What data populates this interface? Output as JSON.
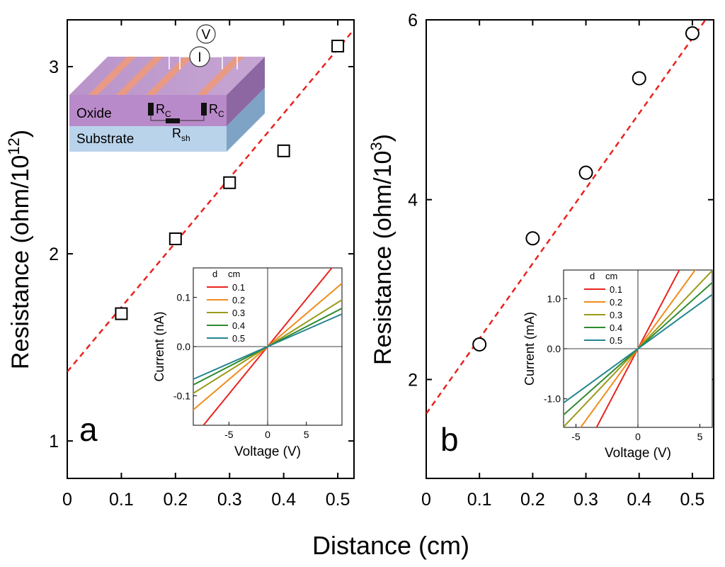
{
  "figure": {
    "xlabel": "Distance (cm)"
  },
  "chart_data": [
    {
      "panel": "a",
      "type": "scatter",
      "panel_label": "a",
      "ylabel_main": "Resistance (ohm/10",
      "ylabel_exp": "12",
      "ylabel_close": ")",
      "xlim": [
        0,
        0.53
      ],
      "ylim": [
        0.8,
        3.25
      ],
      "x_ticks": [
        0,
        0.1,
        0.2,
        0.3,
        0.4,
        0.5
      ],
      "x_tick_labels": [
        "0",
        "0.1",
        "0.2",
        "0.3",
        "0.4",
        "0.5"
      ],
      "y_ticks": [
        1,
        2,
        3
      ],
      "y_tick_labels": [
        "1",
        "2",
        "3"
      ],
      "marker": "square",
      "series": [
        {
          "name": "data",
          "x": [
            0.1,
            0.2,
            0.3,
            0.4,
            0.5
          ],
          "y": [
            1.68,
            2.08,
            2.38,
            2.55,
            3.11
          ]
        }
      ],
      "fit": {
        "name": "linear fit",
        "color": "#e8231f",
        "intercept": 1.37,
        "slope": 3.45
      },
      "inset": {
        "xlabel": "Voltage (V)",
        "ylabel": "Current (nA)",
        "xlim": [
          -9.6,
          9.6
        ],
        "ylim": [
          -0.16,
          0.16
        ],
        "x_ticks": [
          -5,
          0,
          5
        ],
        "x_tick_labels": [
          "-5",
          "0",
          "5"
        ],
        "y_ticks": [
          -0.1,
          0,
          0.1
        ],
        "y_tick_labels": [
          "-0.1",
          "0.0",
          "0.1"
        ],
        "legend_header_d": "d",
        "legend_header_unit": "cm",
        "series": [
          {
            "name": "0.1",
            "color": "#e8231f",
            "slope": 0.0193
          },
          {
            "name": "0.2",
            "color": "#f08c1c",
            "slope": 0.0134
          },
          {
            "name": "0.3",
            "color": "#9a9a1a",
            "slope": 0.0099
          },
          {
            "name": "0.4",
            "color": "#2e8b2e",
            "slope": 0.0081
          },
          {
            "name": "0.5",
            "color": "#24858f",
            "slope": 0.0069
          }
        ]
      },
      "schematic": {
        "oxide_label": "Oxide",
        "substrate_label": "Substrate",
        "rc_label": "R",
        "rc_sub": "C",
        "rsh_label": "R",
        "rsh_sub": "sh",
        "voltmeter": "V",
        "ammeter": "I"
      }
    },
    {
      "panel": "b",
      "type": "scatter",
      "panel_label": "b",
      "ylabel_main": "Resistance (ohm/10",
      "ylabel_exp": "3",
      "ylabel_close": ")",
      "xlim": [
        0,
        0.54
      ],
      "ylim": [
        0.9,
        6.0
      ],
      "x_ticks": [
        0,
        0.1,
        0.2,
        0.3,
        0.4,
        0.5
      ],
      "x_tick_labels": [
        "0",
        "0.1",
        "0.2",
        "0.3",
        "0.4",
        "0.5"
      ],
      "y_ticks": [
        2,
        4,
        6
      ],
      "y_tick_labels": [
        "2",
        "4",
        "6"
      ],
      "marker": "circle",
      "series": [
        {
          "name": "data",
          "x": [
            0.1,
            0.2,
            0.3,
            0.4,
            0.5
          ],
          "y": [
            2.39,
            3.57,
            4.3,
            5.35,
            5.85
          ]
        }
      ],
      "fit": {
        "name": "linear fit",
        "color": "#e8231f",
        "intercept": 1.62,
        "slope": 8.35
      },
      "inset": {
        "xlabel": "Voltage (V)",
        "ylabel": "Current (mA)",
        "xlim": [
          -6.0,
          6.0
        ],
        "ylim": [
          -1.57,
          1.57
        ],
        "x_ticks": [
          -5,
          0,
          5
        ],
        "x_tick_labels": [
          "-5",
          "0",
          "5"
        ],
        "y_ticks": [
          -1,
          0,
          1
        ],
        "y_tick_labels": [
          "-1.0",
          "0.0",
          "1.0"
        ],
        "legend_header_d": "d",
        "legend_header_unit": "cm",
        "series": [
          {
            "name": "0.1",
            "color": "#e8231f",
            "slope": 0.47
          },
          {
            "name": "0.2",
            "color": "#f08c1c",
            "slope": 0.34
          },
          {
            "name": "0.3",
            "color": "#9a9a1a",
            "slope": 0.26
          },
          {
            "name": "0.4",
            "color": "#2e8b2e",
            "slope": 0.22
          },
          {
            "name": "0.5",
            "color": "#24858f",
            "slope": 0.18
          }
        ]
      }
    }
  ]
}
